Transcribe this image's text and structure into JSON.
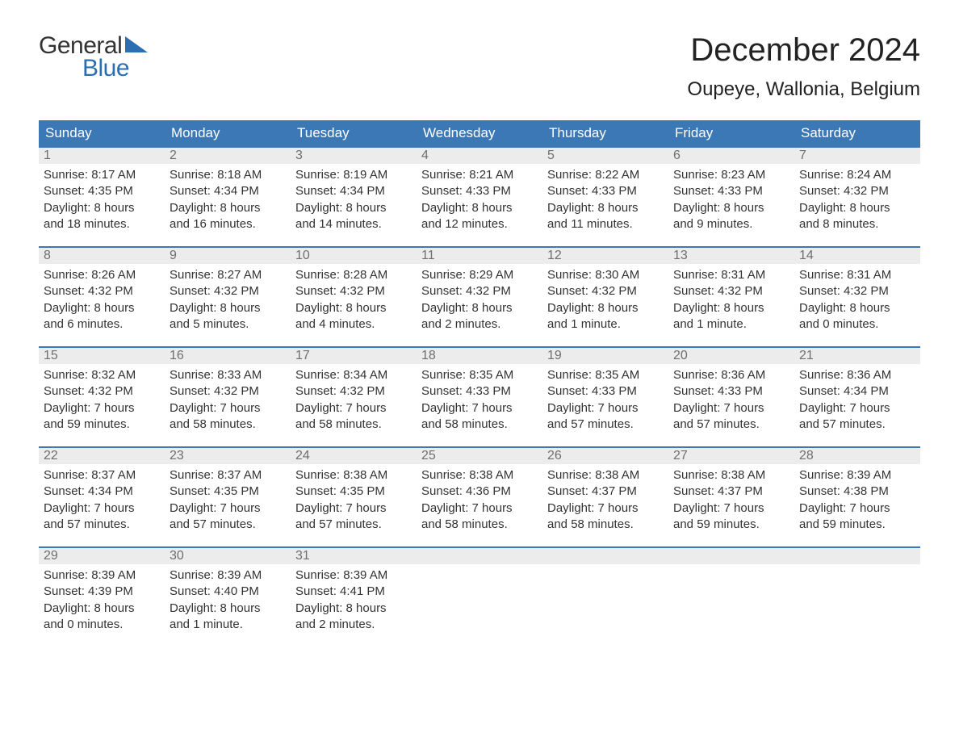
{
  "logo": {
    "text_general": "General",
    "text_blue": "Blue",
    "triangle_color": "#2c6fb0"
  },
  "title": {
    "month": "December 2024",
    "location": "Oupeye, Wallonia, Belgium"
  },
  "style": {
    "header_bg": "#3b78b5",
    "header_text": "#ffffff",
    "daynum_bg": "#ececec",
    "daynum_border": "#3b78b5",
    "daynum_color": "#6f6f6f",
    "body_text": "#333333",
    "page_bg": "#ffffff",
    "font_family": "Arial",
    "month_title_fontsize": 40,
    "location_fontsize": 24,
    "weekday_fontsize": 17,
    "daynum_fontsize": 16,
    "content_fontsize": 15
  },
  "weekdays": [
    "Sunday",
    "Monday",
    "Tuesday",
    "Wednesday",
    "Thursday",
    "Friday",
    "Saturday"
  ],
  "weeks": [
    [
      {
        "day": "1",
        "sunrise": "Sunrise: 8:17 AM",
        "sunset": "Sunset: 4:35 PM",
        "dl1": "Daylight: 8 hours",
        "dl2": "and 18 minutes."
      },
      {
        "day": "2",
        "sunrise": "Sunrise: 8:18 AM",
        "sunset": "Sunset: 4:34 PM",
        "dl1": "Daylight: 8 hours",
        "dl2": "and 16 minutes."
      },
      {
        "day": "3",
        "sunrise": "Sunrise: 8:19 AM",
        "sunset": "Sunset: 4:34 PM",
        "dl1": "Daylight: 8 hours",
        "dl2": "and 14 minutes."
      },
      {
        "day": "4",
        "sunrise": "Sunrise: 8:21 AM",
        "sunset": "Sunset: 4:33 PM",
        "dl1": "Daylight: 8 hours",
        "dl2": "and 12 minutes."
      },
      {
        "day": "5",
        "sunrise": "Sunrise: 8:22 AM",
        "sunset": "Sunset: 4:33 PM",
        "dl1": "Daylight: 8 hours",
        "dl2": "and 11 minutes."
      },
      {
        "day": "6",
        "sunrise": "Sunrise: 8:23 AM",
        "sunset": "Sunset: 4:33 PM",
        "dl1": "Daylight: 8 hours",
        "dl2": "and 9 minutes."
      },
      {
        "day": "7",
        "sunrise": "Sunrise: 8:24 AM",
        "sunset": "Sunset: 4:32 PM",
        "dl1": "Daylight: 8 hours",
        "dl2": "and 8 minutes."
      }
    ],
    [
      {
        "day": "8",
        "sunrise": "Sunrise: 8:26 AM",
        "sunset": "Sunset: 4:32 PM",
        "dl1": "Daylight: 8 hours",
        "dl2": "and 6 minutes."
      },
      {
        "day": "9",
        "sunrise": "Sunrise: 8:27 AM",
        "sunset": "Sunset: 4:32 PM",
        "dl1": "Daylight: 8 hours",
        "dl2": "and 5 minutes."
      },
      {
        "day": "10",
        "sunrise": "Sunrise: 8:28 AM",
        "sunset": "Sunset: 4:32 PM",
        "dl1": "Daylight: 8 hours",
        "dl2": "and 4 minutes."
      },
      {
        "day": "11",
        "sunrise": "Sunrise: 8:29 AM",
        "sunset": "Sunset: 4:32 PM",
        "dl1": "Daylight: 8 hours",
        "dl2": "and 2 minutes."
      },
      {
        "day": "12",
        "sunrise": "Sunrise: 8:30 AM",
        "sunset": "Sunset: 4:32 PM",
        "dl1": "Daylight: 8 hours",
        "dl2": "and 1 minute."
      },
      {
        "day": "13",
        "sunrise": "Sunrise: 8:31 AM",
        "sunset": "Sunset: 4:32 PM",
        "dl1": "Daylight: 8 hours",
        "dl2": "and 1 minute."
      },
      {
        "day": "14",
        "sunrise": "Sunrise: 8:31 AM",
        "sunset": "Sunset: 4:32 PM",
        "dl1": "Daylight: 8 hours",
        "dl2": "and 0 minutes."
      }
    ],
    [
      {
        "day": "15",
        "sunrise": "Sunrise: 8:32 AM",
        "sunset": "Sunset: 4:32 PM",
        "dl1": "Daylight: 7 hours",
        "dl2": "and 59 minutes."
      },
      {
        "day": "16",
        "sunrise": "Sunrise: 8:33 AM",
        "sunset": "Sunset: 4:32 PM",
        "dl1": "Daylight: 7 hours",
        "dl2": "and 58 minutes."
      },
      {
        "day": "17",
        "sunrise": "Sunrise: 8:34 AM",
        "sunset": "Sunset: 4:32 PM",
        "dl1": "Daylight: 7 hours",
        "dl2": "and 58 minutes."
      },
      {
        "day": "18",
        "sunrise": "Sunrise: 8:35 AM",
        "sunset": "Sunset: 4:33 PM",
        "dl1": "Daylight: 7 hours",
        "dl2": "and 58 minutes."
      },
      {
        "day": "19",
        "sunrise": "Sunrise: 8:35 AM",
        "sunset": "Sunset: 4:33 PM",
        "dl1": "Daylight: 7 hours",
        "dl2": "and 57 minutes."
      },
      {
        "day": "20",
        "sunrise": "Sunrise: 8:36 AM",
        "sunset": "Sunset: 4:33 PM",
        "dl1": "Daylight: 7 hours",
        "dl2": "and 57 minutes."
      },
      {
        "day": "21",
        "sunrise": "Sunrise: 8:36 AM",
        "sunset": "Sunset: 4:34 PM",
        "dl1": "Daylight: 7 hours",
        "dl2": "and 57 minutes."
      }
    ],
    [
      {
        "day": "22",
        "sunrise": "Sunrise: 8:37 AM",
        "sunset": "Sunset: 4:34 PM",
        "dl1": "Daylight: 7 hours",
        "dl2": "and 57 minutes."
      },
      {
        "day": "23",
        "sunrise": "Sunrise: 8:37 AM",
        "sunset": "Sunset: 4:35 PM",
        "dl1": "Daylight: 7 hours",
        "dl2": "and 57 minutes."
      },
      {
        "day": "24",
        "sunrise": "Sunrise: 8:38 AM",
        "sunset": "Sunset: 4:35 PM",
        "dl1": "Daylight: 7 hours",
        "dl2": "and 57 minutes."
      },
      {
        "day": "25",
        "sunrise": "Sunrise: 8:38 AM",
        "sunset": "Sunset: 4:36 PM",
        "dl1": "Daylight: 7 hours",
        "dl2": "and 58 minutes."
      },
      {
        "day": "26",
        "sunrise": "Sunrise: 8:38 AM",
        "sunset": "Sunset: 4:37 PM",
        "dl1": "Daylight: 7 hours",
        "dl2": "and 58 minutes."
      },
      {
        "day": "27",
        "sunrise": "Sunrise: 8:38 AM",
        "sunset": "Sunset: 4:37 PM",
        "dl1": "Daylight: 7 hours",
        "dl2": "and 59 minutes."
      },
      {
        "day": "28",
        "sunrise": "Sunrise: 8:39 AM",
        "sunset": "Sunset: 4:38 PM",
        "dl1": "Daylight: 7 hours",
        "dl2": "and 59 minutes."
      }
    ],
    [
      {
        "day": "29",
        "sunrise": "Sunrise: 8:39 AM",
        "sunset": "Sunset: 4:39 PM",
        "dl1": "Daylight: 8 hours",
        "dl2": "and 0 minutes."
      },
      {
        "day": "30",
        "sunrise": "Sunrise: 8:39 AM",
        "sunset": "Sunset: 4:40 PM",
        "dl1": "Daylight: 8 hours",
        "dl2": "and 1 minute."
      },
      {
        "day": "31",
        "sunrise": "Sunrise: 8:39 AM",
        "sunset": "Sunset: 4:41 PM",
        "dl1": "Daylight: 8 hours",
        "dl2": "and 2 minutes."
      },
      {
        "empty": true
      },
      {
        "empty": true
      },
      {
        "empty": true
      },
      {
        "empty": true
      }
    ]
  ]
}
